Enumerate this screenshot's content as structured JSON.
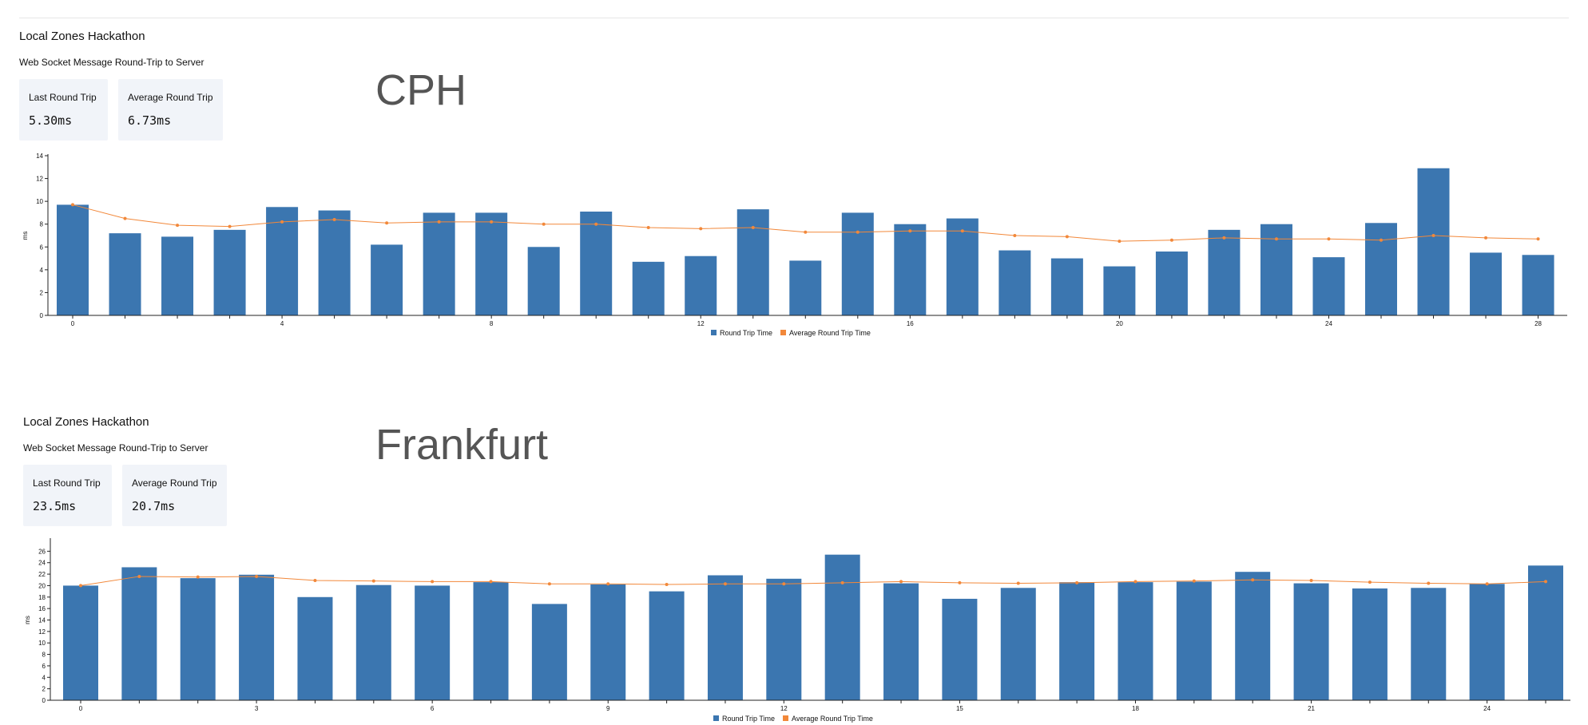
{
  "colors": {
    "bar": "#3b76b0",
    "line": "#f2883a",
    "stat_bg": "#f1f4f9",
    "city_text": "#555555"
  },
  "panels": [
    {
      "app_title": "Local Zones Hackathon",
      "subtitle": "Web Socket Message Round-Trip to Server",
      "city": "CPH",
      "stats": [
        {
          "label": "Last Round Trip",
          "value": "5.30ms"
        },
        {
          "label": "Average Round Trip",
          "value": "6.73ms"
        }
      ]
    },
    {
      "app_title": "Local Zones Hackathon",
      "subtitle": "Web Socket Message Round-Trip to Server",
      "city": "Frankfurt",
      "stats": [
        {
          "label": "Last Round Trip",
          "value": "23.5ms"
        },
        {
          "label": "Average Round Trip",
          "value": "20.7ms"
        }
      ]
    }
  ],
  "chart_data": [
    {
      "type": "bar",
      "title": "CPH",
      "xlabel": "",
      "ylabel": "ms",
      "ylim": [
        0,
        14
      ],
      "yticks": [
        0,
        2,
        4,
        6,
        8,
        10,
        12,
        14
      ],
      "xticks": [
        0,
        4,
        8,
        12,
        16,
        20,
        24,
        28
      ],
      "x": [
        0,
        1,
        2,
        3,
        4,
        5,
        6,
        7,
        8,
        9,
        10,
        11,
        12,
        13,
        14,
        15,
        16,
        17,
        18,
        19,
        20,
        21,
        22,
        23,
        24,
        25,
        26,
        27,
        28
      ],
      "series": [
        {
          "name": "Round Trip Time",
          "kind": "bar",
          "values": [
            9.7,
            7.2,
            6.9,
            7.5,
            9.5,
            9.2,
            6.2,
            9.0,
            9.0,
            6.0,
            9.1,
            4.7,
            5.2,
            9.3,
            4.8,
            9.0,
            8.0,
            8.5,
            5.7,
            5.0,
            4.3,
            5.6,
            7.5,
            8.0,
            5.1,
            8.1,
            12.9,
            5.5,
            5.3
          ]
        },
        {
          "name": "Average Round Trip Time",
          "kind": "line",
          "values": [
            9.7,
            8.5,
            7.9,
            7.8,
            8.2,
            8.4,
            8.1,
            8.2,
            8.2,
            8.0,
            8.0,
            7.7,
            7.6,
            7.7,
            7.3,
            7.3,
            7.4,
            7.4,
            7.0,
            6.9,
            6.5,
            6.6,
            6.8,
            6.7,
            6.7,
            6.6,
            7.0,
            6.8,
            6.7
          ]
        }
      ],
      "legend": [
        "Round Trip Time",
        "Average Round Trip Time"
      ],
      "legend_position": "bottom-center"
    },
    {
      "type": "bar",
      "title": "Frankfurt",
      "xlabel": "",
      "ylabel": "ms",
      "ylim": [
        0,
        28
      ],
      "yticks": [
        0,
        2,
        4,
        6,
        8,
        10,
        12,
        14,
        16,
        18,
        20,
        22,
        24,
        26
      ],
      "xticks": [
        0,
        3,
        6,
        9,
        12,
        15,
        18,
        21,
        24
      ],
      "x": [
        0,
        1,
        2,
        3,
        4,
        5,
        6,
        7,
        8,
        9,
        10,
        11,
        12,
        13,
        14,
        15,
        16,
        17,
        18,
        19,
        20,
        21,
        22,
        23,
        24,
        25
      ],
      "series": [
        {
          "name": "Round Trip Time",
          "kind": "bar",
          "values": [
            20.0,
            23.2,
            21.3,
            21.9,
            18.0,
            20.1,
            20.0,
            20.6,
            16.8,
            20.2,
            19.0,
            21.8,
            21.2,
            25.4,
            20.4,
            17.7,
            19.6,
            20.6,
            20.6,
            20.7,
            22.4,
            20.4,
            19.5,
            19.6,
            20.3,
            23.5
          ]
        },
        {
          "name": "Average Round Trip Time",
          "kind": "line",
          "values": [
            20.0,
            21.6,
            21.5,
            21.6,
            20.9,
            20.8,
            20.7,
            20.7,
            20.3,
            20.3,
            20.2,
            20.3,
            20.3,
            20.5,
            20.7,
            20.5,
            20.4,
            20.5,
            20.7,
            20.8,
            21.0,
            20.9,
            20.6,
            20.4,
            20.3,
            20.7
          ]
        }
      ],
      "legend": [
        "Round Trip Time",
        "Average Round Trip Time"
      ],
      "legend_position": "bottom-center"
    }
  ]
}
